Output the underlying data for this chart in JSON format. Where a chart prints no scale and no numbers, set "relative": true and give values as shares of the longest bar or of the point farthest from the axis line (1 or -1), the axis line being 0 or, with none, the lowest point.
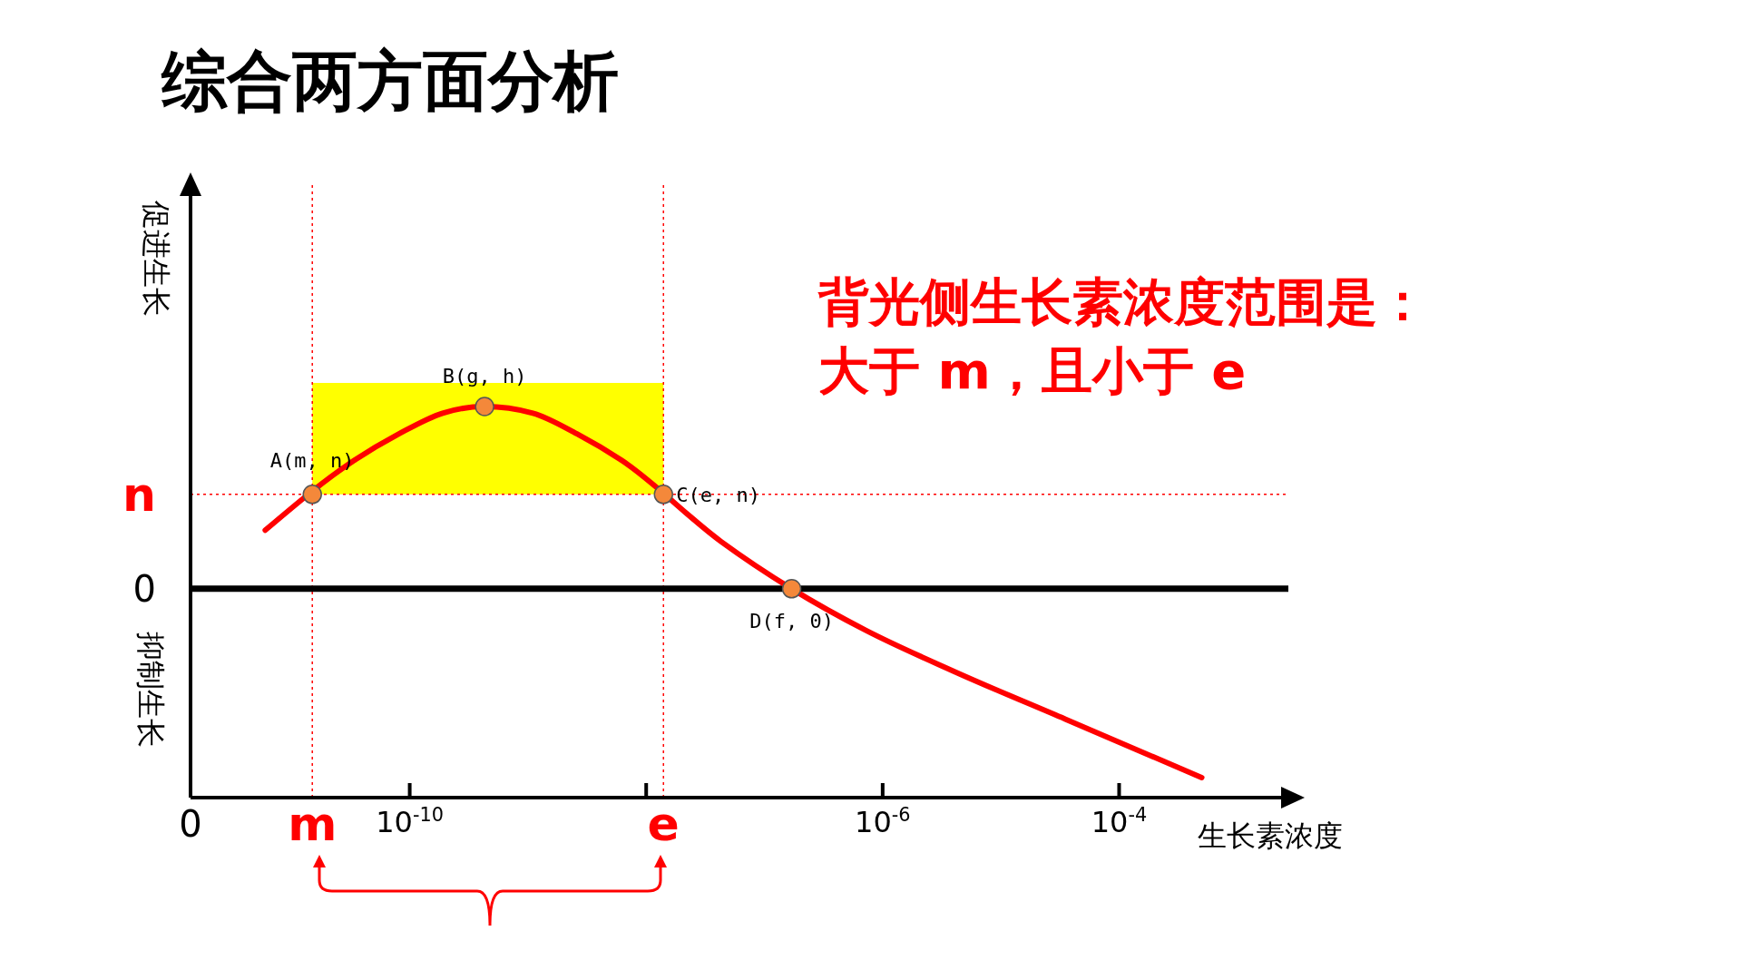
{
  "chart_data": {
    "type": "line",
    "title": "综合两方面分析",
    "xlabel": "生长素浓度",
    "ylabel": "促进生长",
    "relative": true,
    "log": "x",
    "xlim": [
      1.4e-12,
      0.0027
    ],
    "xticks": [
      {
        "value": 1e-10,
        "label": "10$^{-10}$"
      },
      {
        "value": 1e-08,
        "label": null
      },
      {
        "value": 1e-06,
        "label": "10$^{-6}$"
      },
      {
        "value": 0.0001,
        "label": "10$^{-4}$"
      }
    ],
    "series": [
      {
        "color": "#ff0000",
        "marker": "none",
        "line_style": "solid",
        "x": [
          6e-12,
          3.4e-11,
          8.1e-11,
          1.9e-10,
          4.3e-10,
          1.1e-09,
          2.6e-09,
          6.2e-09,
          4.3e-08,
          1.7e-07,
          7.2e-07,
          4.1e-06,
          3.5e-05,
          0.0005
        ],
        "values": [
          0.31,
          0.68,
          0.82,
          0.93,
          0.965,
          0.93,
          0.82,
          0.68,
          0.25,
          0,
          -0.22,
          -0.44,
          -0.69,
          -1
        ]
      },
      {
        "type": "scatter",
        "color": "#f4883a",
        "marker": "circle",
        "x": [
          1.5e-11,
          4.3e-10,
          1.4e-08,
          1.7e-07
        ],
        "values": [
          0.5,
          0.965,
          0.5,
          0
        ]
      }
    ],
    "ref_lines": [
      {
        "axis": "x",
        "value": 1.5e-11,
        "label": "m",
        "color": "#ff0000",
        "line_style": "dotted"
      },
      {
        "axis": "x",
        "value": 1.4e-08,
        "label": "e",
        "color": "#ff0000",
        "line_style": "dotted"
      },
      {
        "axis": "y",
        "value": 0.5,
        "label": "n",
        "color": "#ff0000",
        "line_style": "dotted"
      },
      {
        "axis": "y",
        "value": 0,
        "label": "0",
        "color": "#000000",
        "line_style": "solid"
      }
    ],
    "bands": [
      {
        "axis": "x",
        "from": 1.5e-11,
        "to": 1.4e-08,
        "color": "#ffff00"
      }
    ],
    "annotations": [
      "0",
      "抑制生长",
      "背光侧生长素浓度范围是：",
      "大于 m，且小于 e",
      {
        "text": "A(m, n)",
        "x": 1.5e-11,
        "y": 0.5
      },
      {
        "text": "B(g, h)",
        "x": 4.3e-10,
        "y": 0.965
      },
      {
        "text": "C(e, n)",
        "x": 1.4e-08,
        "y": 0.5
      },
      {
        "text": "D(f, 0)",
        "x": 1.7e-07,
        "y": 0
      }
    ]
  }
}
